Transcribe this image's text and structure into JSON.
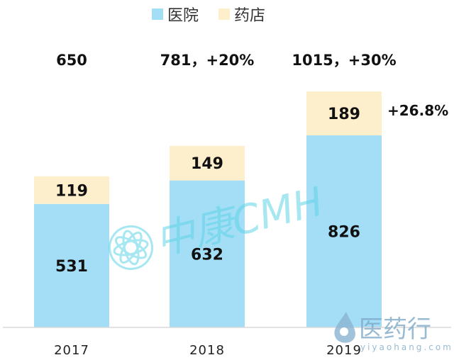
{
  "chart_data": {
    "type": "bar",
    "stacked": true,
    "categories": [
      "2017",
      "2018",
      "2019"
    ],
    "series": [
      {
        "name": "医院",
        "values": [
          531,
          632,
          826
        ],
        "color": "#a4def6"
      },
      {
        "name": "药店",
        "values": [
          119,
          149,
          189
        ],
        "color": "#fdefcc"
      }
    ],
    "totals": [
      "650",
      "781",
      "1015"
    ],
    "total_annotations": [
      "650",
      "781，+20%",
      "1015，+30%"
    ],
    "side_annotation": "+26.8%",
    "ylim": [
      0,
      1150
    ],
    "grid": false,
    "legend_position": "top"
  },
  "watermarks": {
    "center": "中康CMH",
    "corner_main": "医药行",
    "corner_url": "yiyaohang.com"
  },
  "colors": {
    "hospital": "#a4def6",
    "pharmacy": "#fdefcc",
    "axis": "#d9d9d9",
    "watermark": "#5fd4e6"
  }
}
